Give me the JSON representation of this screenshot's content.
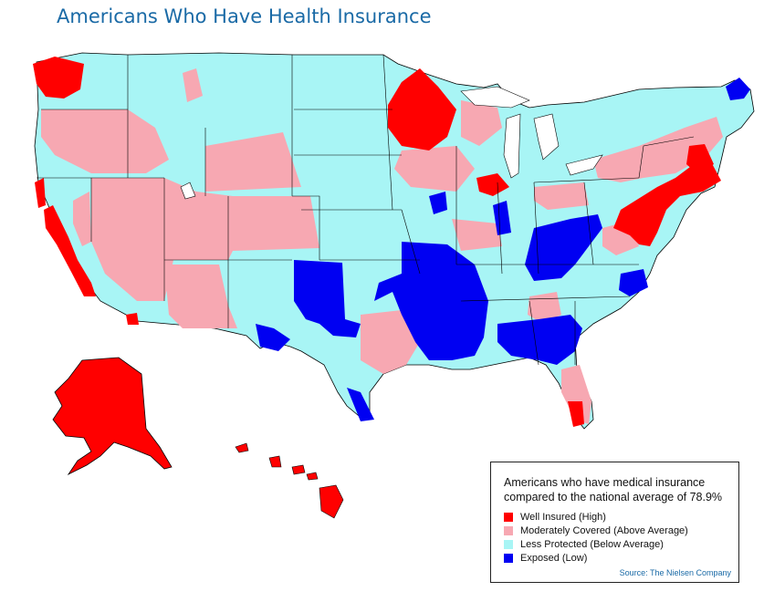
{
  "title": "Americans Who Have Health Insurance",
  "colors": {
    "high": "#ff0000",
    "above": "#f7a8b2",
    "below": "#a8f5f5",
    "low": "#0000f2",
    "outline": "#000000",
    "title": "#1a6aa6"
  },
  "legend": {
    "heading_line1": "Americans who have medical insurance",
    "heading_line2": "compared to the national average of 78.9%",
    "items": [
      {
        "label": "Well Insured (High)",
        "key": "high"
      },
      {
        "label": "Moderately Covered (Above Average)",
        "key": "above"
      },
      {
        "label": "Less Protected (Below Average)",
        "key": "below"
      },
      {
        "label": "Exposed (Low)",
        "key": "low"
      }
    ],
    "source": "Source: The Nielsen Company"
  }
}
